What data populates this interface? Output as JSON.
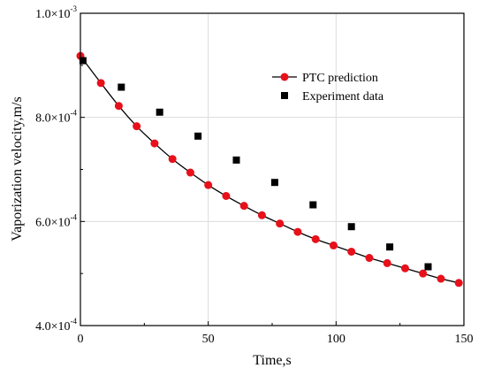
{
  "chart_data": {
    "type": "scatter",
    "title": "",
    "xlabel": "Time,s",
    "ylabel": "Vaporization velocity,m/s",
    "xlim": [
      0,
      150
    ],
    "ylim": [
      0.0004,
      0.001
    ],
    "grid": true,
    "legend_position": "top-right",
    "x_ticks": [
      {
        "value": 0,
        "label": "0"
      },
      {
        "value": 50,
        "label": "50"
      },
      {
        "value": 100,
        "label": "100"
      },
      {
        "value": 150,
        "label": "150"
      }
    ],
    "y_ticks": [
      {
        "value": 0.0004,
        "mantissa": "4.0×10",
        "exponent": "-4"
      },
      {
        "value": 0.0006,
        "mantissa": "6.0×10",
        "exponent": "-4"
      },
      {
        "value": 0.0008,
        "mantissa": "8.0×10",
        "exponent": "-4"
      },
      {
        "value": 0.001,
        "mantissa": "1.0×10",
        "exponent": "-3"
      }
    ],
    "series": [
      {
        "name": "PTC prediction",
        "style": "line-with-circle-markers",
        "color": "#e8101a",
        "line_color": "#000000",
        "x": [
          0,
          8,
          15,
          22,
          29,
          36,
          43,
          50,
          57,
          64,
          71,
          78,
          85,
          92,
          99,
          106,
          113,
          120,
          127,
          134,
          141,
          148
        ],
        "y": [
          0.000918,
          0.000866,
          0.000822,
          0.000783,
          0.00075,
          0.00072,
          0.000694,
          0.00067,
          0.000649,
          0.00063,
          0.000612,
          0.000596,
          0.00058,
          0.000566,
          0.000554,
          0.000542,
          0.00053,
          0.00052,
          0.00051,
          0.0005,
          0.00049,
          0.000482
        ]
      },
      {
        "name": "Experiment data",
        "style": "square-markers",
        "color": "#000000",
        "x": [
          1,
          16,
          31,
          46,
          61,
          76,
          91,
          106,
          121,
          136
        ],
        "y": [
          0.000909,
          0.000858,
          0.00081,
          0.000764,
          0.000718,
          0.000675,
          0.000632,
          0.00059,
          0.000551,
          0.000513
        ]
      }
    ]
  }
}
